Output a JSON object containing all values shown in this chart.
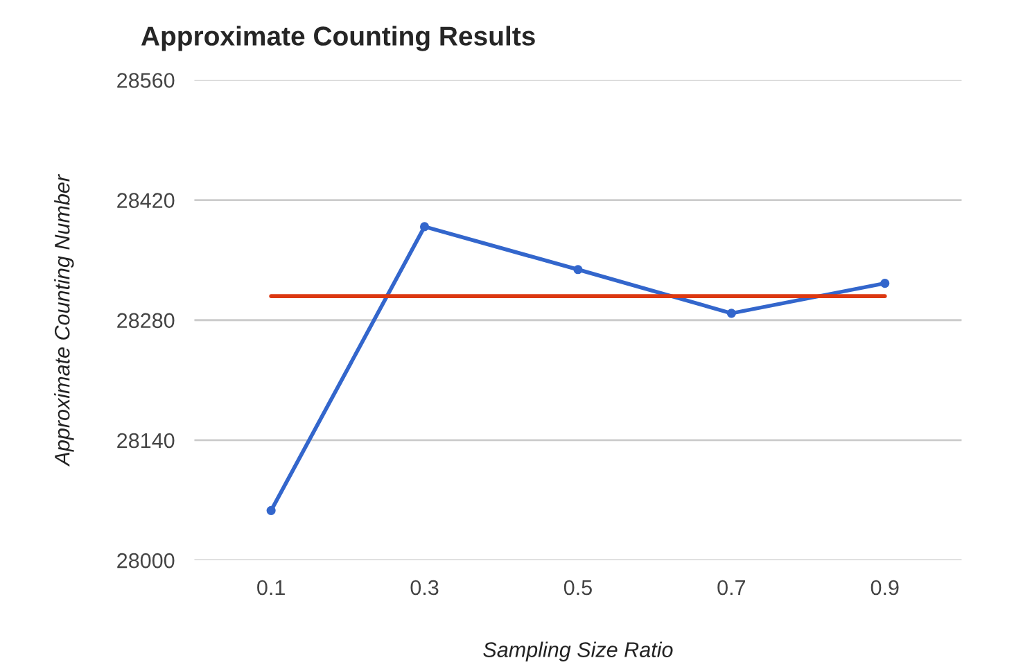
{
  "chart_data": {
    "type": "line",
    "title": "Approximate Counting Results",
    "xlabel": "Sampling Size Ratio",
    "ylabel": "Approximate Counting Number",
    "categories": [
      "0.1",
      "0.3",
      "0.5",
      "0.7",
      "0.9"
    ],
    "series": [
      {
        "color": "#3366cc",
        "values": [
          28058,
          28389,
          28339,
          28288,
          28323
        ],
        "marker": "circle"
      },
      {
        "color": "#dc3912",
        "values": [
          28308,
          28308,
          28308,
          28308,
          28308
        ],
        "marker": "none"
      }
    ],
    "ylim": [
      28000,
      28560
    ],
    "yticks": [
      28000,
      28140,
      28280,
      28420,
      28560
    ],
    "grid": "y",
    "line_style": "solid"
  }
}
